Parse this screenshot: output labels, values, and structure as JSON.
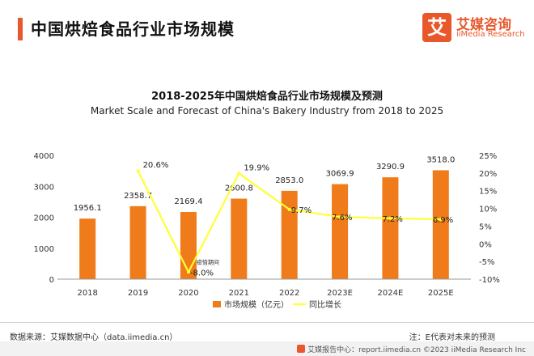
{
  "header": {
    "title": "中国烘焙食品行业市场规模",
    "logo_mark": "艾",
    "logo_cn": "艾媒咨询",
    "logo_en": "iiMedia Research"
  },
  "colors": {
    "accent": "#e8582b",
    "bar": "#f07b1a",
    "line": "#ffff33"
  },
  "chart_data": {
    "type": "bar",
    "title": "2018-2025年中国烘焙食品行业市场规模及预测",
    "subtitle": "Market Scale and Forecast of China's Bakery Industry from 2018 to 2025",
    "categories": [
      "2018",
      "2019",
      "2020",
      "2021",
      "2022",
      "2023E",
      "2024E",
      "2025E"
    ],
    "series": [
      {
        "name": "市场规模（亿元）",
        "type": "bar",
        "axis": "left",
        "values": [
          1956.1,
          2358.7,
          2169.4,
          2600.8,
          2853.0,
          3069.9,
          3290.9,
          3518.0
        ],
        "labels": [
          "1956.1",
          "2358.7",
          "2169.4",
          "2600.8",
          "2853.0",
          "3069.9",
          "3290.9",
          "3518.0"
        ]
      },
      {
        "name": "同比增长",
        "type": "line",
        "axis": "right",
        "values": [
          null,
          20.6,
          -8.0,
          19.9,
          9.7,
          7.6,
          7.2,
          6.9
        ],
        "labels": [
          "",
          "20.6%",
          "-8.0%",
          "19.9%",
          "9.7%",
          "7.6%",
          "7.2%",
          "6.9%"
        ]
      }
    ],
    "y_left": {
      "min": 0,
      "max": 4000,
      "ticks": [
        "0",
        "1000",
        "2000",
        "3000",
        "4000"
      ]
    },
    "y_right": {
      "min": -10,
      "max": 25,
      "ticks": [
        "-10%",
        "-5%",
        "0%",
        "5%",
        "10%",
        "15%",
        "20%",
        "25%"
      ]
    },
    "annotation": "疫情期间",
    "legend_position": "bottom",
    "grid": false
  },
  "footer": {
    "source": "数据来源：艾媒数据中心（data.iimedia.cn）",
    "note": "注：E代表对未来的预测",
    "bottom": "艾媒报告中心：report.iimedia.cn   ©2023 iiMedia Research Inc"
  }
}
